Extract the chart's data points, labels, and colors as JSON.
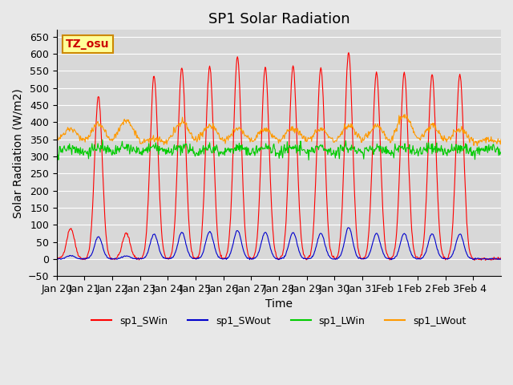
{
  "title": "SP1 Solar Radiation",
  "xlabel": "Time",
  "ylabel": "Solar Radiation (W/m2)",
  "ylim": [
    -50,
    670
  ],
  "yticks": [
    -50,
    0,
    50,
    100,
    150,
    200,
    250,
    300,
    350,
    400,
    450,
    500,
    550,
    600,
    650
  ],
  "colors": {
    "sp1_SWin": "#ff0000",
    "sp1_SWout": "#0000cc",
    "sp1_LWin": "#00cc00",
    "sp1_LWout": "#ff9900"
  },
  "day_labels": [
    "Jan 20",
    "Jan 21",
    "Jan 22",
    "Jan 23",
    "Jan 24",
    "Jan 25",
    "Jan 26",
    "Jan 27",
    "Jan 28",
    "Jan 29",
    "Jan 30",
    "Jan 31",
    "Feb 1",
    "Feb 2",
    "Feb 3",
    "Feb 4"
  ],
  "sw_peaks": [
    90,
    475,
    75,
    535,
    560,
    565,
    590,
    560,
    565,
    560,
    605,
    545,
    545,
    540,
    540,
    0
  ],
  "sw_out_peaks": [
    10,
    65,
    8,
    73,
    78,
    80,
    83,
    78,
    78,
    75,
    92,
    75,
    75,
    73,
    73,
    0
  ],
  "lw_out_peaks": [
    380,
    395,
    405,
    350,
    400,
    390,
    380,
    380,
    380,
    380,
    390,
    390,
    420,
    390,
    380,
    350
  ],
  "tz_label": "TZ_osu",
  "bg_color": "#e8e8e8",
  "plot_bg_color": "#d8d8d8",
  "grid_color": "#ffffff",
  "title_fontsize": 13,
  "axis_fontsize": 10,
  "tick_fontsize": 9
}
